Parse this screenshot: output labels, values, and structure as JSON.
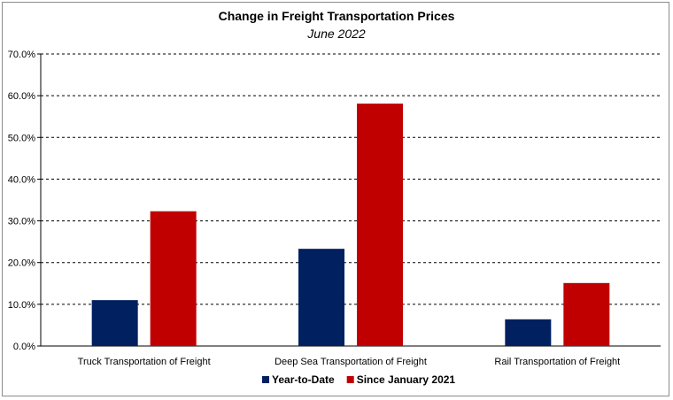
{
  "chart_data": {
    "type": "bar",
    "title": "Change in Freight Transportation Prices",
    "subtitle": "June 2022",
    "categories": [
      "Truck Transportation of Freight",
      "Deep Sea Transportation of Freight",
      "Rail Transportation of Freight"
    ],
    "series": [
      {
        "name": "Year-to-Date",
        "values": [
          11.0,
          23.3,
          6.4
        ],
        "color": "#002060"
      },
      {
        "name": "Since January 2021",
        "values": [
          32.3,
          58.1,
          15.1
        ],
        "color": "#c00000"
      }
    ],
    "ylim": [
      0,
      70
    ],
    "yticks": [
      "0.0%",
      "10.0%",
      "20.0%",
      "30.0%",
      "40.0%",
      "50.0%",
      "60.0%",
      "70.0%"
    ],
    "grid": true,
    "legend_position": "bottom"
  }
}
